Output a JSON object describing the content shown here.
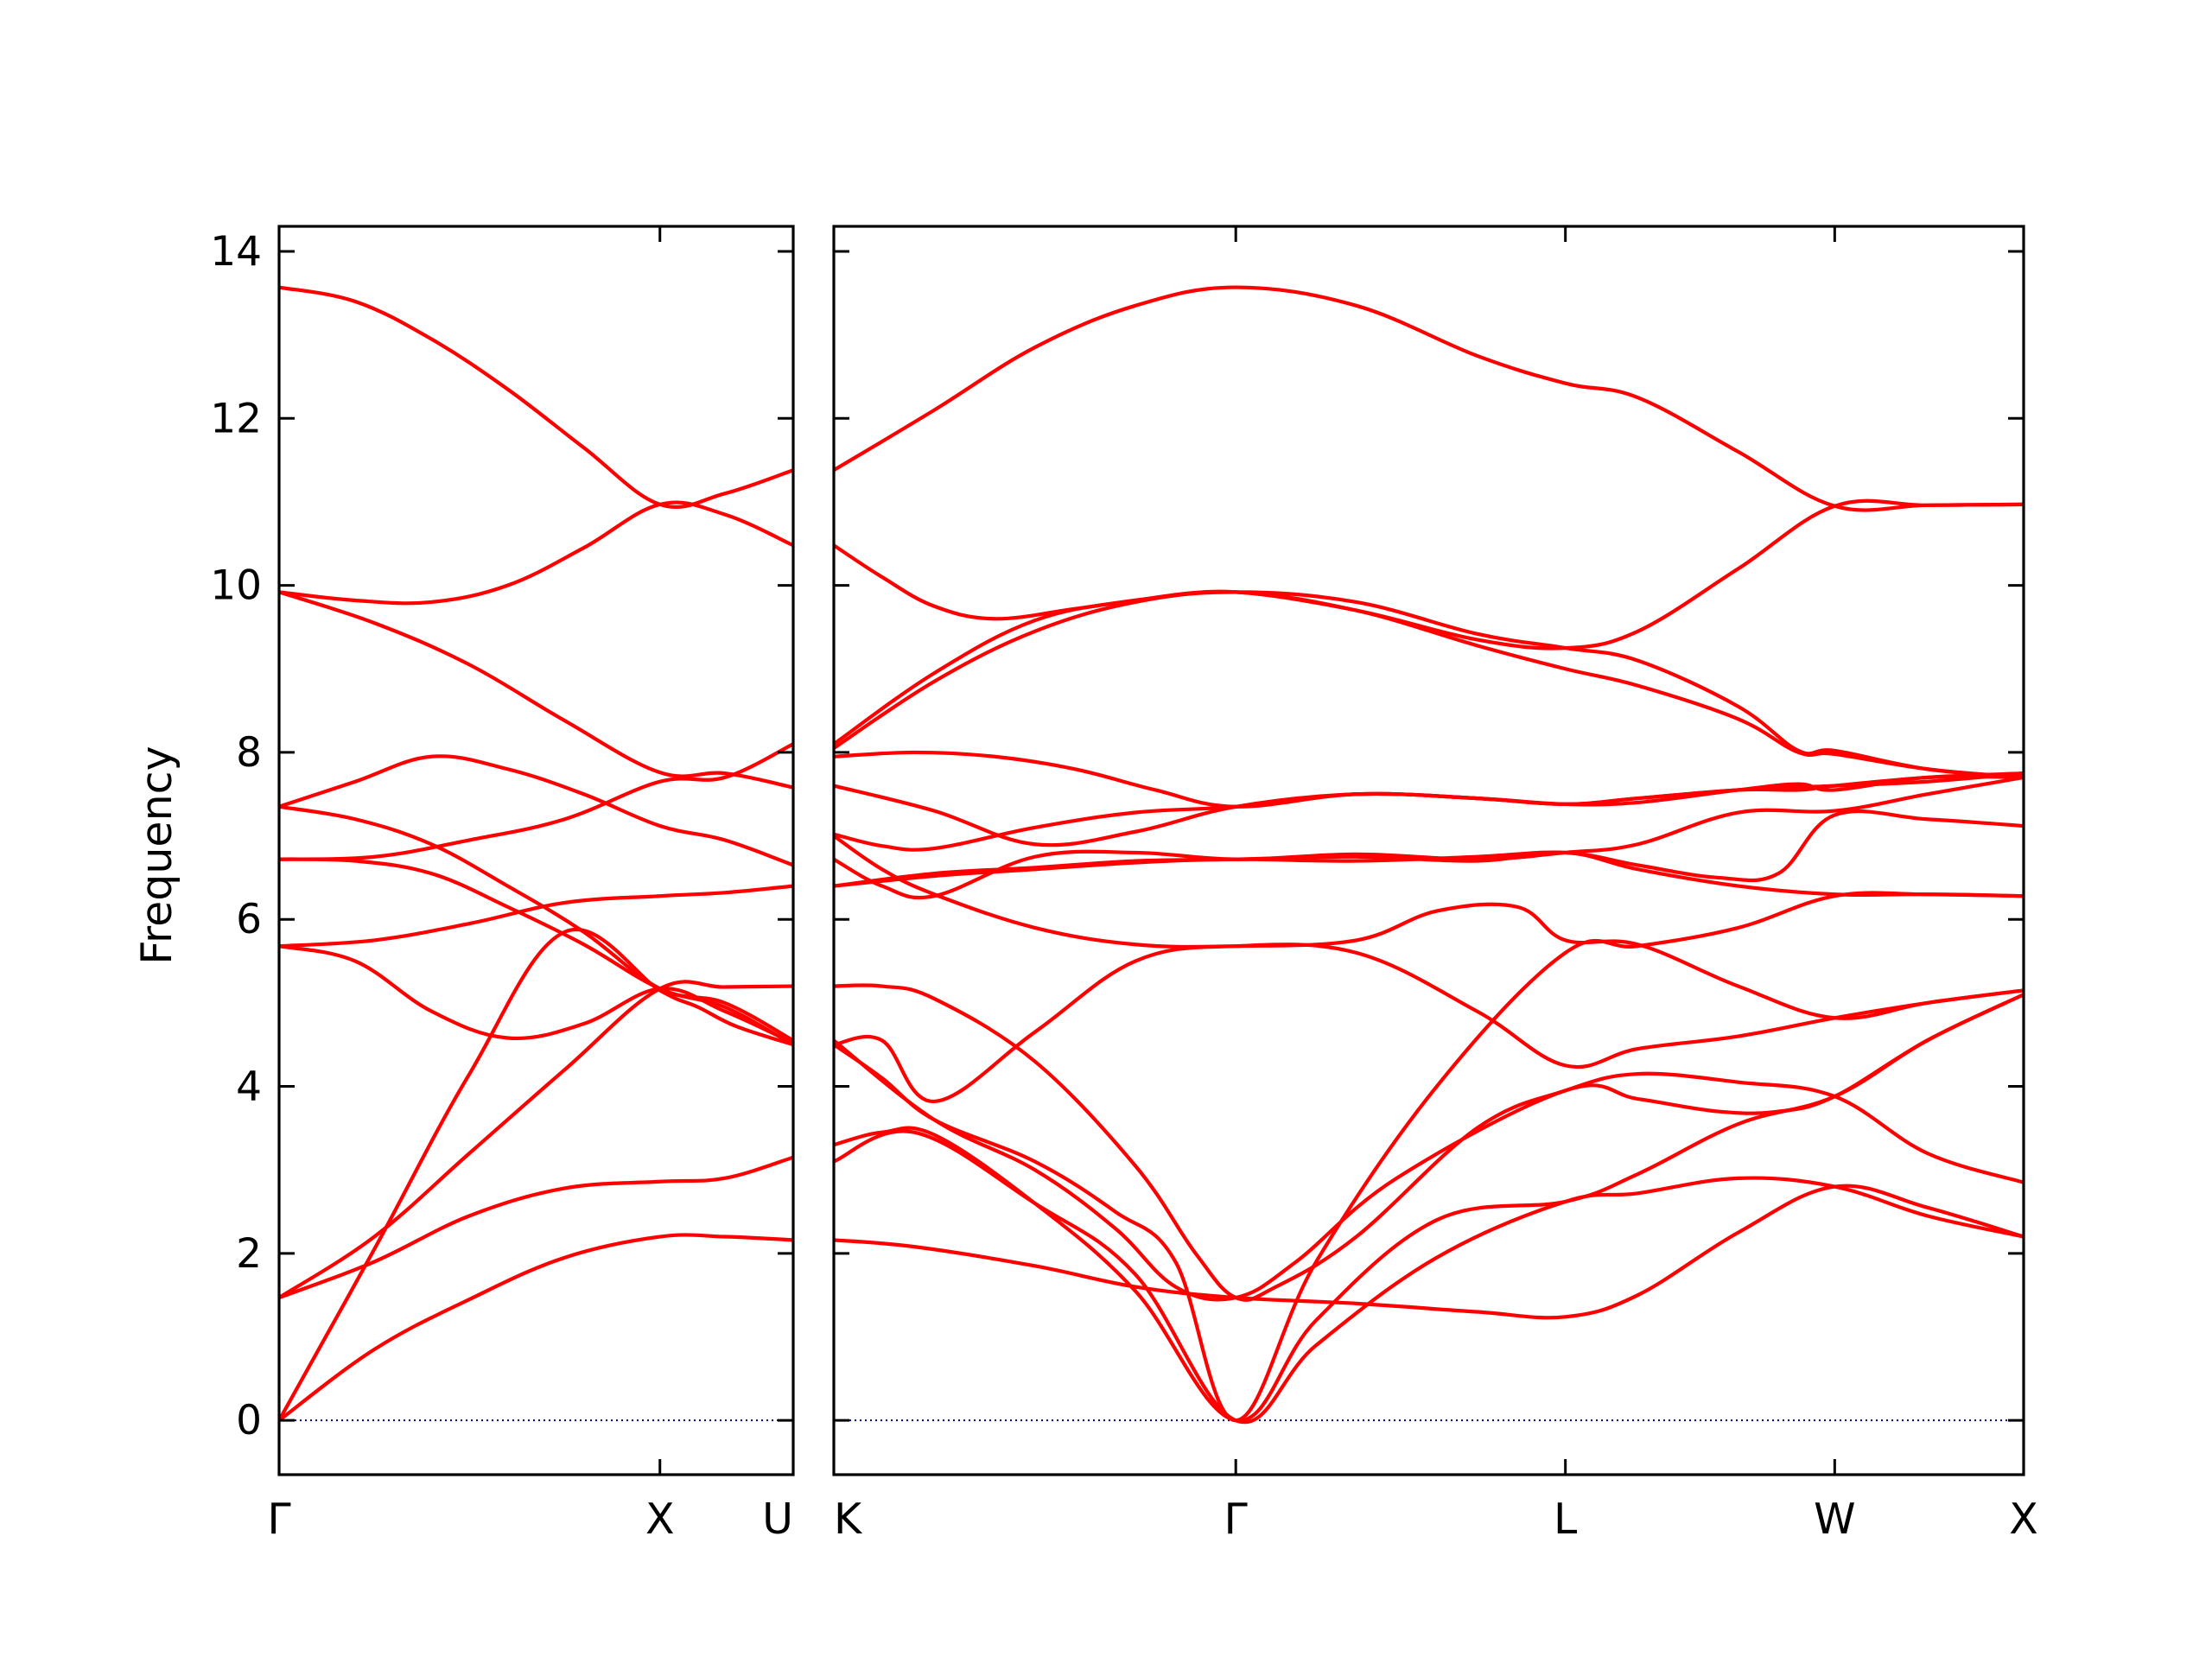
{
  "chart_data": {
    "type": "line",
    "title": "",
    "xlabel": "",
    "ylabel": "Frequency",
    "ylim": [
      -0.65,
      14.3
    ],
    "yticks": [
      0,
      2,
      4,
      6,
      8,
      10,
      12,
      14
    ],
    "colors": {
      "bands": "#ff0000",
      "zero_line": "#00008b"
    },
    "grid": false,
    "legend": "none",
    "zero_line": 0,
    "panels": [
      {
        "path": "Γ-X-U",
        "x_range": [
          0,
          1.35
        ],
        "ticks": [
          {
            "pos": 0,
            "label": "Γ",
            "anchor": "middle"
          },
          {
            "pos": 1,
            "label": "X",
            "anchor": "middle"
          },
          {
            "pos": 1.35,
            "label": "U",
            "anchor": "end"
          }
        ],
        "series": [
          {
            "x": [
              0,
              0.25,
              0.5,
              0.75,
              1.0,
              1.17,
              1.35
            ],
            "y": [
              0,
              0.85,
              1.45,
              1.95,
              2.2,
              2.2,
              2.16
            ]
          },
          {
            "x": [
              0,
              0.25,
              0.5,
              0.75,
              1.0,
              1.17,
              1.35
            ],
            "y": [
              1.47,
              1.9,
              2.45,
              2.78,
              2.86,
              2.9,
              3.15
            ]
          },
          {
            "x": [
              0,
              0.25,
              0.5,
              0.75,
              1.0,
              1.17,
              1.35
            ],
            "y": [
              1.47,
              2.2,
              3.2,
              4.2,
              5.17,
              5.19,
              5.2
            ]
          },
          {
            "x": [
              0,
              0.25,
              0.5,
              0.75,
              1.0,
              1.1,
              1.2,
              1.35
            ],
            "y": [
              0,
              2.05,
              4.15,
              5.85,
              5.15,
              4.95,
              4.72,
              4.5
            ]
          },
          {
            "x": [
              0,
              0.2,
              0.4,
              0.6,
              0.8,
              1.0,
              1.17,
              1.35
            ],
            "y": [
              5.68,
              5.5,
              4.9,
              4.58,
              4.75,
              5.17,
              4.9,
              4.52
            ]
          },
          {
            "x": [
              0,
              0.25,
              0.5,
              0.75,
              1.0,
              1.17,
              1.35
            ],
            "y": [
              5.68,
              5.75,
              5.95,
              6.2,
              6.28,
              6.32,
              6.4
            ]
          },
          {
            "x": [
              0,
              0.2,
              0.4,
              0.6,
              0.8,
              1.0,
              1.17,
              1.35
            ],
            "y": [
              6.72,
              6.7,
              6.55,
              6.15,
              5.7,
              5.17,
              4.95,
              4.5
            ]
          },
          {
            "x": [
              0,
              0.25,
              0.5,
              0.75,
              1.0,
              1.17,
              1.35
            ],
            "y": [
              6.72,
              6.75,
              6.95,
              7.2,
              7.65,
              7.7,
              8.1
            ]
          },
          {
            "x": [
              0,
              0.2,
              0.4,
              0.6,
              0.8,
              1.0,
              1.17,
              1.35
            ],
            "y": [
              7.35,
              7.2,
              6.9,
              6.4,
              5.85,
              5.17,
              5.0,
              4.55
            ]
          },
          {
            "x": [
              0,
              0.2,
              0.4,
              0.6,
              0.8,
              1.0,
              1.17,
              1.35
            ],
            "y": [
              7.35,
              7.65,
              7.95,
              7.8,
              7.5,
              7.12,
              6.95,
              6.65
            ]
          },
          {
            "x": [
              0,
              0.25,
              0.5,
              0.75,
              1.0,
              1.17,
              1.35
            ],
            "y": [
              9.92,
              9.55,
              9.05,
              8.38,
              7.76,
              7.75,
              7.58
            ]
          },
          {
            "x": [
              0,
              0.2,
              0.4,
              0.6,
              0.8,
              1.0,
              1.17,
              1.35
            ],
            "y": [
              9.92,
              9.82,
              9.8,
              10.0,
              10.45,
              10.97,
              10.85,
              10.48
            ]
          },
          {
            "x": [
              0,
              0.2,
              0.4,
              0.6,
              0.8,
              1.0,
              1.17,
              1.35
            ],
            "y": [
              13.57,
              13.4,
              12.95,
              12.35,
              11.65,
              10.97,
              11.1,
              11.38
            ]
          }
        ]
      },
      {
        "path": "K-Γ-L-W-X",
        "x_range": [
          0,
          2.96
        ],
        "ticks": [
          {
            "pos": 0,
            "label": "K",
            "anchor": "start"
          },
          {
            "pos": 1,
            "label": "Γ",
            "anchor": "middle"
          },
          {
            "pos": 1.82,
            "label": "L",
            "anchor": "middle"
          },
          {
            "pos": 2.49,
            "label": "W",
            "anchor": "middle"
          },
          {
            "pos": 2.96,
            "label": "X",
            "anchor": "middle"
          }
        ],
        "series": [
          {
            "x": [
              0,
              0.2,
              0.5,
              0.75,
              1.0,
              1.3,
              1.6,
              1.82,
              2.0,
              2.25,
              2.49,
              2.72,
              2.96
            ],
            "y": [
              2.16,
              2.08,
              1.85,
              1.6,
              1.47,
              1.4,
              1.3,
              1.24,
              1.5,
              2.25,
              2.8,
              2.55,
              2.2
            ]
          },
          {
            "x": [
              0,
              0.2,
              0.5,
              0.75,
              1.0,
              1.2,
              1.5,
              1.82,
              2.0,
              2.25,
              2.49,
              2.72,
              2.96
            ],
            "y": [
              3.1,
              3.45,
              2.6,
              1.75,
              0,
              0.9,
              1.95,
              2.62,
              2.72,
              2.9,
              2.8,
              2.45,
              2.2
            ]
          },
          {
            "x": [
              0,
              0.12,
              0.25,
              0.5,
              0.75,
              1.0,
              1.2,
              1.5,
              1.82,
              2.0,
              2.25,
              2.49,
              2.72,
              2.96
            ],
            "y": [
              3.3,
              3.45,
              3.42,
              2.6,
              1.55,
              0,
              1.2,
              2.4,
              2.62,
              2.95,
              3.55,
              3.88,
              4.55,
              5.1
            ]
          },
          {
            "x": [
              0,
              0.25,
              0.5,
              0.7,
              0.85,
              1.0,
              1.15,
              1.4,
              1.82,
              2.0,
              2.2,
              2.35,
              2.49,
              2.72,
              2.96
            ],
            "y": [
              4.55,
              3.6,
              3.0,
              2.3,
              1.6,
              1.47,
              1.9,
              2.9,
              3.95,
              3.85,
              3.7,
              3.7,
              3.88,
              4.55,
              5.1
            ]
          },
          {
            "x": [
              0,
              0.12,
              0.25,
              0.5,
              0.7,
              0.85,
              1.0,
              1.2,
              1.5,
              1.82,
              2.0,
              2.25,
              2.49,
              2.72,
              2.96
            ],
            "y": [
              4.5,
              4.1,
              3.6,
              3.1,
              2.5,
              1.9,
              0,
              1.9,
              4.0,
              5.6,
              5.68,
              5.9,
              6.28,
              6.3,
              6.28
            ]
          },
          {
            "x": [
              0,
              0.12,
              0.25,
              0.5,
              0.75,
              0.9,
              1.0,
              1.1,
              1.3,
              1.6,
              1.82,
              2.0,
              2.25,
              2.49,
              2.72,
              2.96
            ],
            "y": [
              5.2,
              5.2,
              5.05,
              4.3,
              3.05,
              2.0,
              1.47,
              1.6,
              2.2,
              3.5,
              3.95,
              4.15,
              4.05,
              3.88,
              3.2,
              2.85
            ]
          },
          {
            "x": [
              0,
              0.12,
              0.25,
              0.5,
              0.75,
              1.0,
              1.3,
              1.6,
              1.82,
              2.0,
              2.25,
              2.49,
              2.72,
              2.96
            ],
            "y": [
              4.5,
              4.55,
              3.82,
              4.65,
              5.5,
              5.68,
              5.6,
              4.9,
              4.25,
              4.45,
              4.6,
              4.82,
              5.0,
              5.15
            ]
          },
          {
            "x": [
              0,
              0.12,
              0.25,
              0.5,
              0.75,
              1.0,
              1.3,
              1.5,
              1.7,
              1.82,
              2.0,
              2.25,
              2.49,
              2.72,
              2.96
            ],
            "y": [
              7.0,
              6.6,
              6.3,
              5.9,
              5.7,
              5.68,
              5.75,
              6.1,
              6.15,
              5.75,
              5.7,
              5.2,
              4.82,
              5.0,
              5.15
            ]
          },
          {
            "x": [
              0,
              0.25,
              0.5,
              0.75,
              1.0,
              1.3,
              1.6,
              1.82,
              2.0,
              2.2,
              2.35,
              2.49,
              2.72,
              2.96
            ],
            "y": [
              6.4,
              6.52,
              6.6,
              6.68,
              6.72,
              6.7,
              6.75,
              6.8,
              6.65,
              6.5,
              6.55,
              7.25,
              7.2,
              7.12
            ]
          },
          {
            "x": [
              0,
              0.25,
              0.5,
              0.75,
              1.0,
              1.3,
              1.6,
              1.82,
              2.0,
              2.25,
              2.49,
              2.72,
              2.96
            ],
            "y": [
              6.4,
              6.55,
              6.62,
              6.7,
              6.72,
              6.75,
              6.7,
              6.8,
              6.6,
              6.4,
              6.3,
              6.3,
              6.28
            ]
          },
          {
            "x": [
              0,
              0.12,
              0.25,
              0.5,
              0.75,
              1.0,
              1.3,
              1.6,
              1.82,
              2.0,
              2.25,
              2.49,
              2.72,
              2.96
            ],
            "y": [
              6.72,
              6.4,
              6.28,
              6.75,
              6.8,
              6.72,
              6.78,
              6.72,
              6.8,
              6.9,
              7.28,
              7.3,
              7.5,
              7.7
            ]
          },
          {
            "x": [
              0,
              0.12,
              0.25,
              0.5,
              0.75,
              1.0,
              1.3,
              1.6,
              1.82,
              2.0,
              2.25,
              2.49,
              2.72,
              2.96
            ],
            "y": [
              7.02,
              6.88,
              6.85,
              7.1,
              7.28,
              7.35,
              7.5,
              7.45,
              7.38,
              7.45,
              7.55,
              7.6,
              7.65,
              7.75
            ]
          },
          {
            "x": [
              0,
              0.25,
              0.5,
              0.75,
              1.0,
              1.3,
              1.6,
              1.82,
              2.0,
              2.25,
              2.4,
              2.49,
              2.72,
              2.96
            ],
            "y": [
              7.6,
              7.3,
              6.9,
              7.05,
              7.35,
              7.5,
              7.45,
              7.38,
              7.4,
              7.55,
              7.62,
              7.55,
              7.7,
              7.7
            ]
          },
          {
            "x": [
              0,
              0.2,
              0.4,
              0.6,
              0.8,
              1.0,
              1.3,
              1.6,
              1.82,
              2.0,
              2.25,
              2.4,
              2.49,
              2.72,
              2.96
            ],
            "y": [
              7.95,
              8.0,
              7.95,
              7.8,
              7.55,
              7.35,
              7.5,
              7.45,
              7.38,
              7.45,
              7.55,
              7.55,
              7.6,
              7.7,
              7.75
            ]
          },
          {
            "x": [
              0,
              0.25,
              0.5,
              0.75,
              1.0,
              1.3,
              1.6,
              1.82,
              2.0,
              2.25,
              2.4,
              2.49,
              2.72,
              2.96
            ],
            "y": [
              8.1,
              8.95,
              9.58,
              9.82,
              9.92,
              9.7,
              9.28,
              9.0,
              8.8,
              8.4,
              8.0,
              7.98,
              7.8,
              7.7
            ]
          },
          {
            "x": [
              0,
              0.25,
              0.5,
              0.75,
              1.0,
              1.3,
              1.6,
              1.82,
              2.0,
              2.25,
              2.4,
              2.49,
              2.72,
              2.96
            ],
            "y": [
              8.05,
              8.85,
              9.45,
              9.8,
              9.92,
              9.8,
              9.42,
              9.25,
              9.1,
              8.55,
              8.02,
              8.02,
              7.8,
              7.7
            ]
          },
          {
            "x": [
              0,
              0.12,
              0.25,
              0.4,
              0.6,
              0.8,
              1.0,
              1.3,
              1.6,
              1.82,
              2.0,
              2.25,
              2.49,
              2.72,
              2.96
            ],
            "y": [
              10.48,
              10.1,
              9.75,
              9.6,
              9.72,
              9.85,
              9.92,
              9.7,
              9.35,
              9.25,
              9.45,
              10.2,
              10.95,
              10.96,
              10.97
            ]
          },
          {
            "x": [
              0,
              0.25,
              0.5,
              0.75,
              1.0,
              1.3,
              1.6,
              1.82,
              2.0,
              2.25,
              2.49,
              2.72,
              2.96
            ],
            "y": [
              11.38,
              12.1,
              12.85,
              13.35,
              13.57,
              13.35,
              12.75,
              12.42,
              12.25,
              11.6,
              10.95,
              10.96,
              10.97
            ]
          }
        ]
      }
    ]
  }
}
